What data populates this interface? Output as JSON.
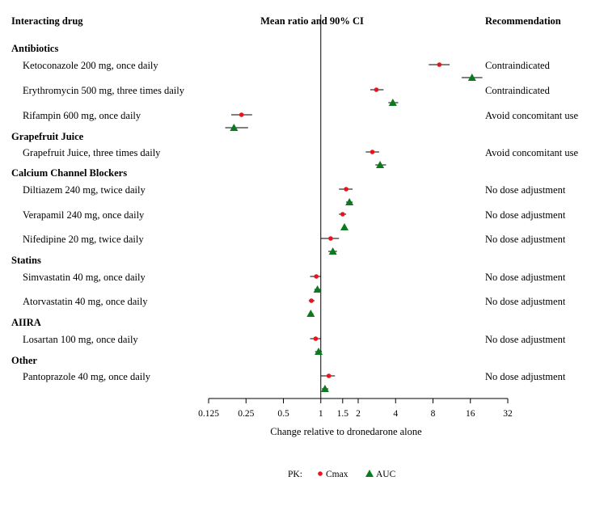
{
  "chart_data": {
    "type": "forest",
    "headers": {
      "drug": "Interacting drug",
      "ci": "Mean ratio and 90% CI",
      "recommendation": "Recommendation"
    },
    "xlabel": "Change relative to dronedarone alone",
    "x_scale": "log2",
    "xlim": [
      0.125,
      32
    ],
    "x_ticks": [
      0.125,
      0.25,
      0.5,
      1,
      1.5,
      2,
      4,
      8,
      16,
      32
    ],
    "x_tick_labels": [
      "0.125",
      "0.25",
      "0.5",
      "1",
      "1.5",
      "2",
      "4",
      "8",
      "16",
      "32"
    ],
    "reference_line": 1,
    "series": [
      {
        "name": "Cmax",
        "marker": "circle",
        "color": "#e8141b"
      },
      {
        "name": "AUC",
        "marker": "triangle",
        "color": "#0b7a1e"
      }
    ],
    "legend_title": "PK:",
    "legend_position": "bottom",
    "groups": [
      {
        "name": "Antibiotics",
        "items": [
          {
            "label": "Ketoconazole 200 mg, once daily",
            "recommendation": "Contraindicated",
            "cmax": {
              "est": 9.0,
              "lo": 7.4,
              "hi": 10.9
            },
            "auc": {
              "est": 16.5,
              "lo": 13.6,
              "hi": 20.0
            }
          },
          {
            "label": "Erythromycin 500 mg, three times daily",
            "recommendation": "Contraindicated",
            "cmax": {
              "est": 2.8,
              "lo": 2.5,
              "hi": 3.2
            },
            "auc": {
              "est": 3.8,
              "lo": 3.5,
              "hi": 4.2
            }
          },
          {
            "label": "Rifampin 600 mg, once daily",
            "recommendation": "Avoid concomitant use",
            "cmax": {
              "est": 0.23,
              "lo": 0.19,
              "hi": 0.28
            },
            "auc": {
              "est": 0.2,
              "lo": 0.17,
              "hi": 0.26
            }
          }
        ]
      },
      {
        "name": "Grapefruit Juice",
        "items": [
          {
            "label": "Grapefruit Juice, three times daily",
            "recommendation": "Avoid concomitant use",
            "cmax": {
              "est": 2.6,
              "lo": 2.3,
              "hi": 2.95
            },
            "auc": {
              "est": 3.0,
              "lo": 2.75,
              "hi": 3.35
            }
          }
        ]
      },
      {
        "name": "Calcium Channel Blockers",
        "items": [
          {
            "label": "Diltiazem 240 mg, twice daily",
            "recommendation": "No dose adjustment",
            "cmax": {
              "est": 1.6,
              "lo": 1.4,
              "hi": 1.8
            },
            "auc": {
              "est": 1.7,
              "lo": 1.6,
              "hi": 1.8
            }
          },
          {
            "label": "Verapamil 240 mg, once daily",
            "recommendation": "No dose adjustment",
            "cmax": {
              "est": 1.5,
              "lo": 1.4,
              "hi": 1.6
            },
            "auc": {
              "est": 1.55,
              "lo": 1.5,
              "hi": 1.6
            }
          },
          {
            "label": "Nifedipine 20 mg, twice daily",
            "recommendation": "No dose adjustment",
            "cmax": {
              "est": 1.2,
              "lo": 1.0,
              "hi": 1.4
            },
            "auc": {
              "est": 1.25,
              "lo": 1.15,
              "hi": 1.35
            }
          }
        ]
      },
      {
        "name": "Statins",
        "items": [
          {
            "label": "Simvastatin 40 mg, once daily",
            "recommendation": "No dose adjustment",
            "cmax": {
              "est": 0.92,
              "lo": 0.82,
              "hi": 1.0
            },
            "auc": {
              "est": 0.94,
              "lo": 0.89,
              "hi": 0.99
            }
          },
          {
            "label": "Atorvastatin 40 mg, once daily",
            "recommendation": "No dose adjustment",
            "cmax": {
              "est": 0.84,
              "lo": 0.8,
              "hi": 0.89
            },
            "auc": {
              "est": 0.83,
              "lo": 0.8,
              "hi": 0.87
            }
          }
        ]
      },
      {
        "name": "AIIRA",
        "items": [
          {
            "label": "Losartan 100 mg, once daily",
            "recommendation": "No dose adjustment",
            "cmax": {
              "est": 0.91,
              "lo": 0.82,
              "hi": 1.0
            },
            "auc": {
              "est": 0.96,
              "lo": 0.9,
              "hi": 1.02
            }
          }
        ]
      },
      {
        "name": "Other",
        "items": [
          {
            "label": "Pantoprazole 40 mg, once daily",
            "recommendation": "No dose adjustment",
            "cmax": {
              "est": 1.16,
              "lo": 1.0,
              "hi": 1.3
            },
            "auc": {
              "est": 1.08,
              "lo": 1.02,
              "hi": 1.15
            }
          }
        ]
      }
    ]
  }
}
